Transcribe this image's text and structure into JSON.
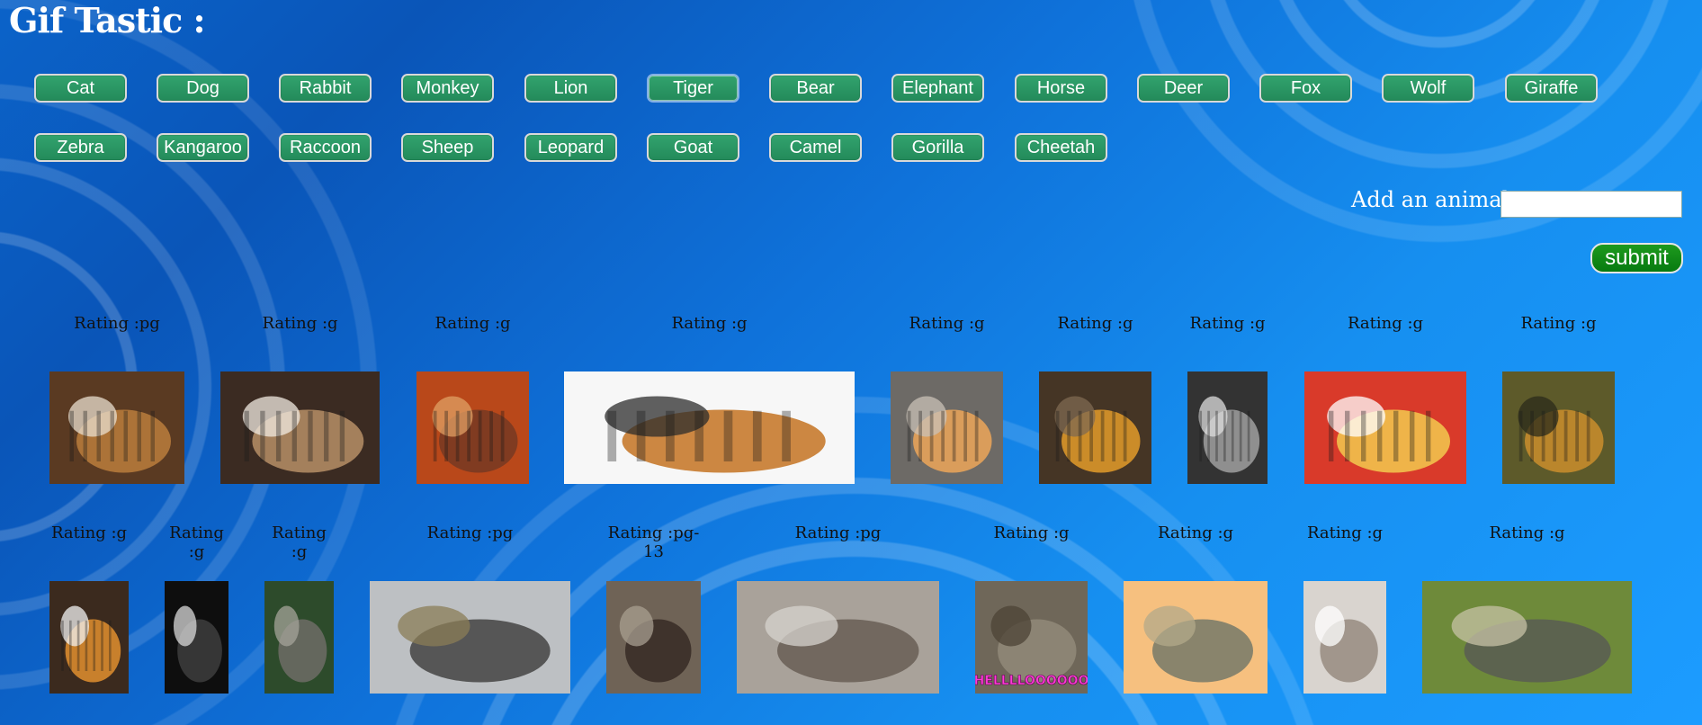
{
  "app": {
    "title": "Gif Tastic :"
  },
  "buttons": {
    "row1": [
      "Cat",
      "Dog",
      "Rabbit",
      "Monkey",
      "Lion",
      "Tiger",
      "Bear",
      "Elephant",
      "Horse",
      "Deer",
      "Fox",
      "Wolf",
      "Giraffe"
    ],
    "row2": [
      "Zebra",
      "Kangaroo",
      "Raccoon",
      "Sheep",
      "Leopard",
      "Goat",
      "Camel",
      "Gorilla",
      "Cheetah"
    ],
    "active": "Tiger"
  },
  "add_form": {
    "label": "Add an animal :",
    "input_value": "",
    "submit_label": "submit"
  },
  "gifs": {
    "row1": [
      {
        "rating": "Rating :pg",
        "subject": "tiger-with-puppy"
      },
      {
        "rating": "Rating :g",
        "subject": "tiger-roar"
      },
      {
        "rating": "Rating :g",
        "subject": "tiger-in-desert"
      },
      {
        "rating": "Rating :g",
        "subject": "tigers-in-snow"
      },
      {
        "rating": "Rating :g",
        "subject": "tiger-paws"
      },
      {
        "rating": "Rating :g",
        "subject": "tiger-lying"
      },
      {
        "rating": "Rating :g",
        "subject": "tiger-black-white"
      },
      {
        "rating": "Rating :g",
        "subject": "tiger-cartoon"
      },
      {
        "rating": "Rating :g",
        "subject": "tiger-face"
      }
    ],
    "row2": [
      {
        "rating": "Rating :g",
        "subject": "tiger-roar-close"
      },
      {
        "rating": "Rating :g",
        "subject": "dark-doorway"
      },
      {
        "rating": "Rating :g",
        "subject": "elephant-in-forest"
      },
      {
        "rating": "Rating :pg",
        "subject": "elephant-walking"
      },
      {
        "rating": "Rating :pg-13",
        "subject": "elephant-and-person"
      },
      {
        "rating": "Rating :pg",
        "subject": "elephant-gym"
      },
      {
        "rating": "Rating :g",
        "subject": "elephant-water-hello",
        "caption": "HELLLLOOOOOO"
      },
      {
        "rating": "Rating :g",
        "subject": "cartoon-elephant"
      },
      {
        "rating": "Rating :g",
        "subject": "room-window"
      },
      {
        "rating": "Rating :g",
        "subject": "baby-elephant-bird"
      }
    ]
  },
  "colors": {
    "button_green": "#238a5a",
    "submit_green": "#0a7f12",
    "background_blue": "#0f72da"
  }
}
